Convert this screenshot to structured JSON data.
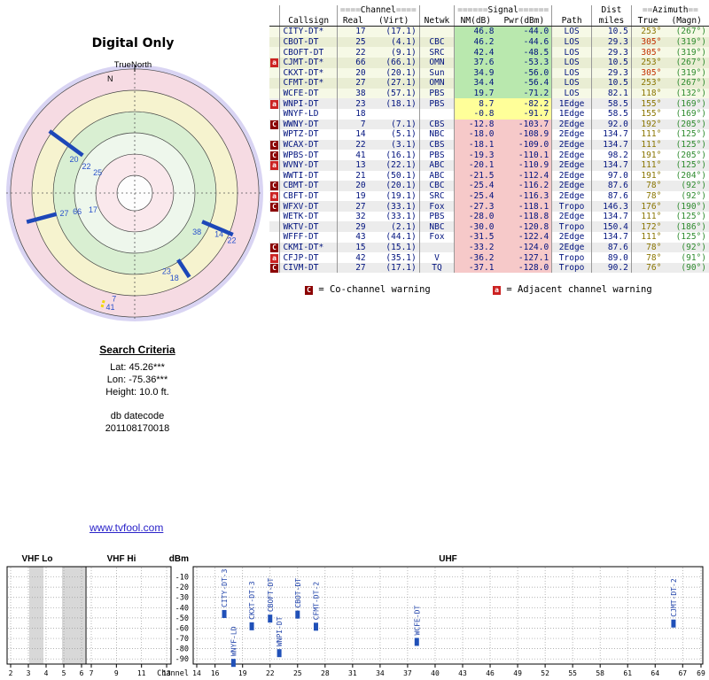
{
  "chart_data": [
    {
      "type": "radar",
      "title": "Digital Only",
      "subtitle": "TrueNorth",
      "north_label": "N",
      "rings": [
        {
          "r": 1.0,
          "color": "#d9d4f3"
        },
        {
          "r": 0.966,
          "color": "#f6dbe3"
        },
        {
          "r": 0.8,
          "color": "#f6f3cf"
        },
        {
          "r": 0.634,
          "color": "#d9efd2"
        },
        {
          "r": 0.469,
          "color": "#eef7ec"
        },
        {
          "r": 0.303,
          "color": "#fae8ec"
        },
        {
          "r": 0.138,
          "color": "#fdfdfd"
        }
      ],
      "circles": [
        0.966,
        0.8,
        0.634,
        0.469,
        0.303,
        0.138
      ],
      "segments": [
        {
          "az": 306,
          "r0": 0.5,
          "r1": 0.82
        },
        {
          "az": 255,
          "r0": 0.63,
          "r1": 0.87
        },
        {
          "az": 113,
          "r0": 0.57,
          "r1": 0.83
        },
        {
          "az": 147,
          "r0": 0.62,
          "r1": 0.78
        }
      ],
      "highlight": {
        "az": 196,
        "r0": 0.87,
        "r1": 0.94,
        "color": "#f0d800"
      },
      "labels": [
        {
          "t": "20",
          "az": 299,
          "r": 0.54
        },
        {
          "t": "22",
          "az": 299,
          "r": 0.43
        },
        {
          "t": "25",
          "az": 299,
          "r": 0.33
        },
        {
          "t": "27",
          "az": 254,
          "r": 0.57
        },
        {
          "t": "66",
          "az": 252,
          "r": 0.47
        },
        {
          "t": "17",
          "az": 248,
          "r": 0.35
        },
        {
          "t": "38",
          "az": 122,
          "r": 0.57
        },
        {
          "t": "14",
          "az": 116,
          "r": 0.73
        },
        {
          "t": "22",
          "az": 116,
          "r": 0.84
        },
        {
          "t": "23",
          "az": 158,
          "r": 0.66
        },
        {
          "t": "18",
          "az": 155,
          "r": 0.73
        },
        {
          "t": "7",
          "az": 191,
          "r": 0.84
        },
        {
          "t": "41",
          "az": 192,
          "r": 0.91
        }
      ]
    },
    {
      "type": "table",
      "header": {
        "channel": {
          "pre": "====",
          "word": "Channel",
          "post": "===="
        },
        "signal": {
          "pre": "======",
          "word": "Signal",
          "post": "======"
        },
        "dist": "Dist",
        "azimuth": {
          "pre": "==",
          "word": "Azimuth",
          "post": "=="
        },
        "cols": [
          "Callsign",
          "Real",
          "(Virt)",
          "Netwk",
          "NM(dB)",
          "Pwr(dBm)",
          "Path",
          "miles",
          "True",
          "(Magn)"
        ]
      },
      "rows": [
        {
          "m": "",
          "cs": "CITY-DT*",
          "re": "17",
          "vi": "(17.1)",
          "ne": "",
          "nm": "46.8",
          "pw": "-44.0",
          "pa": "LOS",
          "mi": "10.5",
          "t": "253°",
          "mg": "(267°)",
          "s": "g",
          "tc": "o"
        },
        {
          "m": "",
          "cs": "CBOT-DT",
          "re": "25",
          "vi": "(4.1)",
          "ne": "CBC",
          "nm": "46.2",
          "pw": "-44.6",
          "pa": "LOS",
          "mi": "29.3",
          "t": "305°",
          "mg": "(319°)",
          "s": "g",
          "tc": "r"
        },
        {
          "m": "",
          "cs": "CBOFT-DT",
          "re": "22",
          "vi": "(9.1)",
          "ne": "SRC",
          "nm": "42.4",
          "pw": "-48.5",
          "pa": "LOS",
          "mi": "29.3",
          "t": "305°",
          "mg": "(319°)",
          "s": "g",
          "tc": "r"
        },
        {
          "m": "a",
          "cs": "CJMT-DT*",
          "re": "66",
          "vi": "(66.1)",
          "ne": "OMN",
          "nm": "37.6",
          "pw": "-53.3",
          "pa": "LOS",
          "mi": "10.5",
          "t": "253°",
          "mg": "(267°)",
          "s": "g",
          "tc": "o"
        },
        {
          "m": "",
          "cs": "CKXT-DT*",
          "re": "20",
          "vi": "(20.1)",
          "ne": "Sun",
          "nm": "34.9",
          "pw": "-56.0",
          "pa": "LOS",
          "mi": "29.3",
          "t": "305°",
          "mg": "(319°)",
          "s": "g",
          "tc": "r"
        },
        {
          "m": "",
          "cs": "CFMT-DT*",
          "re": "27",
          "vi": "(27.1)",
          "ne": "OMN",
          "nm": "34.4",
          "pw": "-56.4",
          "pa": "LOS",
          "mi": "10.5",
          "t": "253°",
          "mg": "(267°)",
          "s": "g",
          "tc": "o"
        },
        {
          "m": "",
          "cs": "WCFE-DT",
          "re": "38",
          "vi": "(57.1)",
          "ne": "PBS",
          "nm": "19.7",
          "pw": "-71.2",
          "pa": "LOS",
          "mi": "82.1",
          "t": "118°",
          "mg": "(132°)",
          "s": "g",
          "tc": "o"
        },
        {
          "m": "a",
          "cs": "WNPI-DT",
          "re": "23",
          "vi": "(18.1)",
          "ne": "PBS",
          "nm": "8.7",
          "pw": "-82.2",
          "pa": "1Edge",
          "mi": "58.5",
          "t": "155°",
          "mg": "(169°)",
          "s": "y",
          "tc": "o"
        },
        {
          "m": "",
          "cs": "WNYF-LD",
          "re": "18",
          "vi": "",
          "ne": "",
          "nm": "-0.8",
          "pw": "-91.7",
          "pa": "1Edge",
          "mi": "58.5",
          "t": "155°",
          "mg": "(169°)",
          "s": "y",
          "tc": "o"
        },
        {
          "m": "C",
          "cs": "WWNY-DT",
          "re": "7",
          "vi": "(7.1)",
          "ne": "CBS",
          "nm": "-12.8",
          "pw": "-103.7",
          "pa": "2Edge",
          "mi": "92.0",
          "t": "192°",
          "mg": "(205°)",
          "s": "p",
          "tc": "o"
        },
        {
          "m": "",
          "cs": "WPTZ-DT",
          "re": "14",
          "vi": "(5.1)",
          "ne": "NBC",
          "nm": "-18.0",
          "pw": "-108.9",
          "pa": "2Edge",
          "mi": "134.7",
          "t": "111°",
          "mg": "(125°)",
          "s": "p",
          "tc": "o"
        },
        {
          "m": "C",
          "cs": "WCAX-DT",
          "re": "22",
          "vi": "(3.1)",
          "ne": "CBS",
          "nm": "-18.1",
          "pw": "-109.0",
          "pa": "2Edge",
          "mi": "134.7",
          "t": "111°",
          "mg": "(125°)",
          "s": "p",
          "tc": "o"
        },
        {
          "m": "C",
          "cs": "WPBS-DT",
          "re": "41",
          "vi": "(16.1)",
          "ne": "PBS",
          "nm": "-19.3",
          "pw": "-110.1",
          "pa": "2Edge",
          "mi": "98.2",
          "t": "191°",
          "mg": "(205°)",
          "s": "p",
          "tc": "o"
        },
        {
          "m": "a",
          "cs": "WVNY-DT",
          "re": "13",
          "vi": "(22.1)",
          "ne": "ABC",
          "nm": "-20.1",
          "pw": "-110.9",
          "pa": "2Edge",
          "mi": "134.7",
          "t": "111°",
          "mg": "(125°)",
          "s": "p",
          "tc": "o"
        },
        {
          "m": "",
          "cs": "WWTI-DT",
          "re": "21",
          "vi": "(50.1)",
          "ne": "ABC",
          "nm": "-21.5",
          "pw": "-112.4",
          "pa": "2Edge",
          "mi": "97.0",
          "t": "191°",
          "mg": "(204°)",
          "s": "p",
          "tc": "o"
        },
        {
          "m": "C",
          "cs": "CBMT-DT",
          "re": "20",
          "vi": "(20.1)",
          "ne": "CBC",
          "nm": "-25.4",
          "pw": "-116.2",
          "pa": "2Edge",
          "mi": "87.6",
          "t": "78°",
          "mg": "(92°)",
          "s": "p",
          "tc": "o"
        },
        {
          "m": "a",
          "cs": "CBFT-DT",
          "re": "19",
          "vi": "(19.1)",
          "ne": "SRC",
          "nm": "-25.4",
          "pw": "-116.3",
          "pa": "2Edge",
          "mi": "87.6",
          "t": "78°",
          "mg": "(92°)",
          "s": "p",
          "tc": "o"
        },
        {
          "m": "C",
          "cs": "WFXV-DT",
          "re": "27",
          "vi": "(33.1)",
          "ne": "Fox",
          "nm": "-27.3",
          "pw": "-118.1",
          "pa": "Tropo",
          "mi": "146.3",
          "t": "176°",
          "mg": "(190°)",
          "s": "p",
          "tc": "o"
        },
        {
          "m": "",
          "cs": "WETK-DT",
          "re": "32",
          "vi": "(33.1)",
          "ne": "PBS",
          "nm": "-28.0",
          "pw": "-118.8",
          "pa": "2Edge",
          "mi": "134.7",
          "t": "111°",
          "mg": "(125°)",
          "s": "p",
          "tc": "o"
        },
        {
          "m": "",
          "cs": "WKTV-DT",
          "re": "29",
          "vi": "(2.1)",
          "ne": "NBC",
          "nm": "-30.0",
          "pw": "-120.8",
          "pa": "Tropo",
          "mi": "150.4",
          "t": "172°",
          "mg": "(186°)",
          "s": "p",
          "tc": "o"
        },
        {
          "m": "",
          "cs": "WFFF-DT",
          "re": "43",
          "vi": "(44.1)",
          "ne": "Fox",
          "nm": "-31.5",
          "pw": "-122.4",
          "pa": "2Edge",
          "mi": "134.7",
          "t": "111°",
          "mg": "(125°)",
          "s": "p",
          "tc": "o"
        },
        {
          "m": "C",
          "cs": "CKMI-DT*",
          "re": "15",
          "vi": "(15.1)",
          "ne": "",
          "nm": "-33.2",
          "pw": "-124.0",
          "pa": "2Edge",
          "mi": "87.6",
          "t": "78°",
          "mg": "(92°)",
          "s": "p",
          "tc": "o"
        },
        {
          "m": "a",
          "cs": "CFJP-DT",
          "re": "42",
          "vi": "(35.1)",
          "ne": "V",
          "nm": "-36.2",
          "pw": "-127.1",
          "pa": "Tropo",
          "mi": "89.0",
          "t": "78°",
          "mg": "(91°)",
          "s": "p",
          "tc": "o"
        },
        {
          "m": "C",
          "cs": "CIVM-DT",
          "re": "27",
          "vi": "(17.1)",
          "ne": "TQ",
          "nm": "-37.1",
          "pw": "-128.0",
          "pa": "Tropo",
          "mi": "90.2",
          "t": "76°",
          "mg": "(90°)",
          "s": "p",
          "tc": "o"
        }
      ],
      "colors": {
        "sig_green": "#b9e8ae",
        "sig_yellow": "#ffff99",
        "sig_pink": "#f6c9c9",
        "az_true_olive": "#8a7500",
        "az_true_red": "#c23000",
        "az_magn_green": "#2e8b2e",
        "text_navy": "#00127e"
      }
    },
    {
      "type": "bar",
      "ylabel": "dBm",
      "xlabel": "Channel",
      "ylim": [
        0,
        -95
      ],
      "y_ticks": [
        -10,
        -20,
        -30,
        -40,
        -50,
        -60,
        -70,
        -80,
        -90
      ],
      "panels": [
        {
          "label": "VHF Lo",
          "ticks": [
            2,
            3,
            4,
            5,
            6
          ]
        },
        {
          "label": "VHF Hi",
          "ticks": [
            7,
            9,
            11,
            13
          ]
        },
        {
          "label": "UHF",
          "ticks": [
            14,
            16,
            19,
            22,
            25,
            28,
            31,
            34,
            37,
            40,
            43,
            46,
            49,
            52,
            55,
            58,
            61,
            64,
            67,
            69
          ]
        }
      ],
      "shaded_bands": [
        {
          "panel": 0,
          "ch0": 3.05,
          "ch1": 3.85
        },
        {
          "panel": 0,
          "ch0": 4.9,
          "ch1": 6.45
        }
      ],
      "stations": [
        {
          "label": "CITY-DT-3",
          "ch": 17,
          "dbm": -44.0
        },
        {
          "label": "WNYF-LD",
          "ch": 18,
          "dbm": -91.7
        },
        {
          "label": "CKXT-DT-3",
          "ch": 20,
          "dbm": -56.0
        },
        {
          "label": "CBOFT-DT",
          "ch": 22,
          "dbm": -48.5
        },
        {
          "label": "WNPI-DT",
          "ch": 23,
          "dbm": -82.2
        },
        {
          "label": "CBOT-DT",
          "ch": 25,
          "dbm": -44.6
        },
        {
          "label": "CFMT-DT-2",
          "ch": 27,
          "dbm": -56.4
        },
        {
          "label": "WCFE-DT",
          "ch": 38,
          "dbm": -71.2
        },
        {
          "label": "CJMT-DT-2",
          "ch": 66,
          "dbm": -53.3
        }
      ],
      "bar_color": "#2050b8"
    }
  ],
  "legend": {
    "c_symbol": "C",
    "c_text": " = Co-channel warning",
    "a_symbol": "a",
    "a_text": " = Adjacent channel warning"
  },
  "criteria": {
    "title": "Search Criteria",
    "lat": "Lat: 45.26***",
    "lon": "Lon: -75.36***",
    "height": "Height: 10.0 ft.",
    "db_label": "db datecode",
    "db_code": "201108170018"
  },
  "link": {
    "text": "www.tvfool.com"
  }
}
